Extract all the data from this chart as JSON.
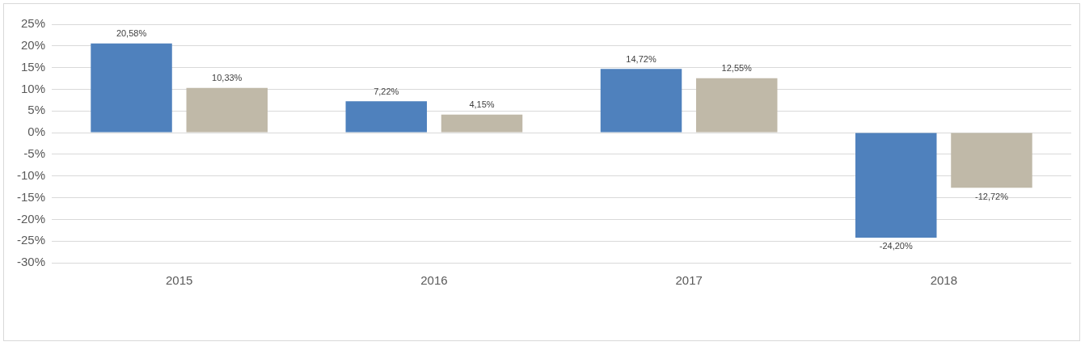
{
  "chart_data": {
    "type": "bar",
    "categories": [
      "2015",
      "2016",
      "2017",
      "2018"
    ],
    "series": [
      {
        "color": "#4f81bd",
        "values": [
          20.58,
          7.22,
          14.72,
          -24.2
        ],
        "value_labels": [
          "20,58%",
          "7,22%",
          "14,72%",
          "-24,20%"
        ]
      },
      {
        "color": "#c0b9a8",
        "values": [
          10.33,
          4.15,
          12.55,
          -12.72
        ],
        "value_labels": [
          "10,33%",
          "4,15%",
          "12,55%",
          "-12,72%"
        ]
      }
    ],
    "ylim": [
      -30,
      25
    ],
    "yticks": [
      {
        "value": -30,
        "label": "-30%"
      },
      {
        "value": -25,
        "label": "-25%"
      },
      {
        "value": -20,
        "label": "-20%"
      },
      {
        "value": -15,
        "label": "-15%"
      },
      {
        "value": -10,
        "label": "-10%"
      },
      {
        "value": -5,
        "label": "-5%"
      },
      {
        "value": 0,
        "label": "0%"
      },
      {
        "value": 5,
        "label": "5%"
      },
      {
        "value": 10,
        "label": "10%"
      },
      {
        "value": 15,
        "label": "15%"
      },
      {
        "value": 20,
        "label": "20%"
      },
      {
        "value": 25,
        "label": "25%"
      }
    ],
    "grid": "y"
  }
}
